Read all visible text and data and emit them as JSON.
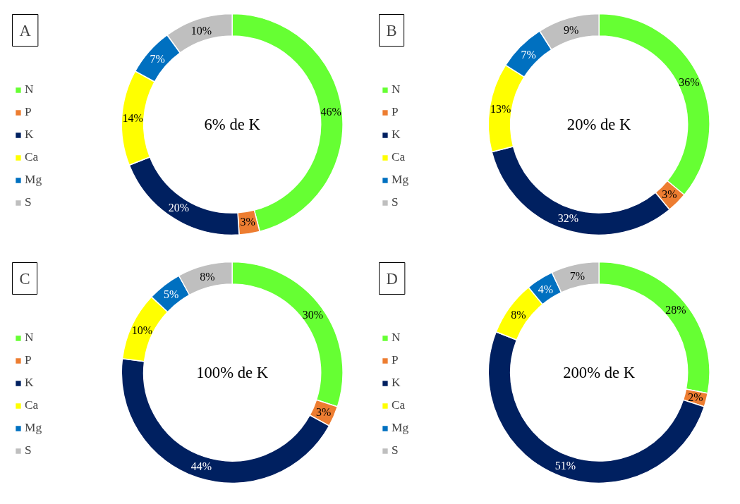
{
  "chart_data": [
    {
      "type": "donut",
      "title": "A",
      "categories": [
        "N",
        "P",
        "K",
        "Ca",
        "Mg",
        "S"
      ],
      "values": [
        46,
        3,
        20,
        14,
        7,
        10
      ],
      "colors": [
        "#66ff33",
        "#ed7d31",
        "#002060",
        "#ffff00",
        "#0070c0",
        "#bfbfbf"
      ],
      "annotations": [
        "6% de K"
      ],
      "value_labels": [
        "46%",
        "3%",
        "20%",
        "14%",
        "7%",
        "10%"
      ],
      "legend": "left"
    },
    {
      "type": "donut",
      "title": "B",
      "categories": [
        "N",
        "P",
        "K",
        "Ca",
        "Mg",
        "S"
      ],
      "values": [
        36,
        3,
        32,
        13,
        7,
        9
      ],
      "colors": [
        "#66ff33",
        "#ed7d31",
        "#002060",
        "#ffff00",
        "#0070c0",
        "#bfbfbf"
      ],
      "annotations": [
        "20% de K"
      ],
      "value_labels": [
        "36%",
        "3%",
        "32%",
        "13%",
        "7%",
        "9%"
      ],
      "legend": "left"
    },
    {
      "type": "donut",
      "title": "C",
      "categories": [
        "N",
        "P",
        "K",
        "Ca",
        "Mg",
        "S"
      ],
      "values": [
        30,
        3,
        44,
        10,
        5,
        8
      ],
      "colors": [
        "#66ff33",
        "#ed7d31",
        "#002060",
        "#ffff00",
        "#0070c0",
        "#bfbfbf"
      ],
      "annotations": [
        "100% de K"
      ],
      "value_labels": [
        "30%",
        "3%",
        "44%",
        "10%",
        "5%",
        "8%"
      ],
      "legend": "left"
    },
    {
      "type": "donut",
      "title": "D",
      "categories": [
        "N",
        "P",
        "K",
        "Ca",
        "Mg",
        "S"
      ],
      "values": [
        28,
        2,
        51,
        8,
        4,
        7
      ],
      "colors": [
        "#66ff33",
        "#ed7d31",
        "#002060",
        "#ffff00",
        "#0070c0",
        "#bfbfbf"
      ],
      "annotations": [
        "200% de K"
      ],
      "value_labels": [
        "28%",
        "2%",
        "51%",
        "8%",
        "4%",
        "7%"
      ],
      "legend": "left"
    }
  ]
}
